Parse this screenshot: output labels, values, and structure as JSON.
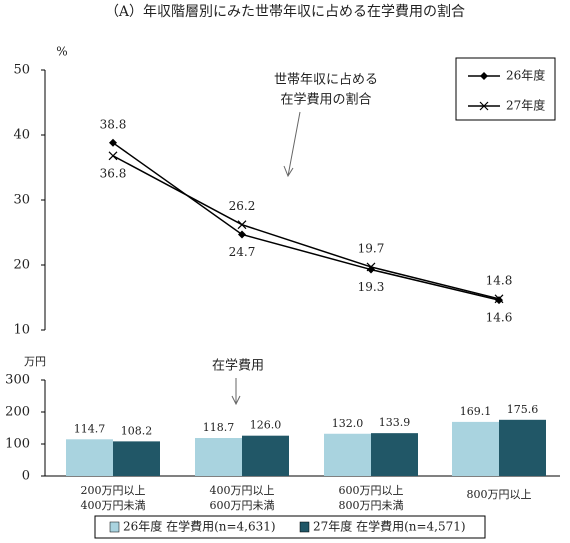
{
  "chart_data": [
    {
      "type": "line",
      "title": "（A）年収階層別にみた世帯年収に占める在学費用の割合",
      "y_unit": "%",
      "annotation": [
        "世帯年収に占める",
        "在学費用の割合"
      ],
      "categories": [
        null,
        null,
        null,
        null
      ],
      "ylim": [
        10,
        50
      ],
      "yticks": [
        10,
        20,
        30,
        40,
        50
      ],
      "series": [
        {
          "name": "26年度",
          "color": "#000000",
          "marker": "diamond",
          "values": [
            38.8,
            24.7,
            19.3,
            14.6
          ]
        },
        {
          "name": "27年度",
          "color": "#000000",
          "marker": "x",
          "values": [
            36.8,
            26.2,
            19.7,
            14.8
          ]
        }
      ]
    },
    {
      "type": "bar",
      "y_unit": "万円",
      "annotation": "在学費用",
      "categories": [
        [
          "200万円以上",
          "400万円未満"
        ],
        [
          "400万円以上",
          "600万円未満"
        ],
        [
          "600万円以上",
          "800万円未満"
        ],
        [
          "800万円以上"
        ]
      ],
      "ylim": [
        0,
        300
      ],
      "yticks": [
        0,
        100,
        200,
        300
      ],
      "series": [
        {
          "name": "26年度 在学費用(n=4,631)",
          "color": "#a9d3df",
          "values": [
            114.7,
            118.7,
            132.0,
            169.1
          ],
          "value_labels": [
            "114.7",
            "118.7",
            "132.0",
            "169.1"
          ]
        },
        {
          "name": "27年度 在学費用(n=4,571)",
          "color": "#215767",
          "values": [
            108.2,
            126.0,
            133.9,
            175.6
          ],
          "value_labels": [
            "108.2",
            "126.0",
            "133.9",
            "175.6"
          ]
        }
      ]
    }
  ]
}
